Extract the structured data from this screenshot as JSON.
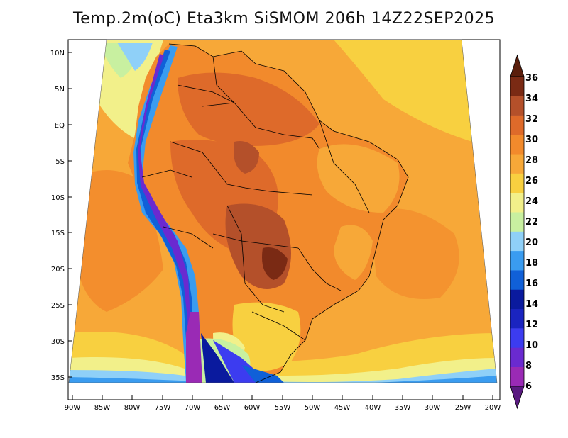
{
  "title": "Temp.2m(oC) Eta3km SiSMOM 206h 14Z22SEP2025",
  "lat_labels": [
    "10N",
    "5N",
    "EQ",
    "5S",
    "10S",
    "15S",
    "20S",
    "25S",
    "30S",
    "35S"
  ],
  "lon_labels": [
    "90W",
    "85W",
    "80W",
    "75W",
    "70W",
    "65W",
    "60W",
    "55W",
    "50W",
    "45W",
    "40W",
    "35W",
    "30W",
    "25W",
    "20W"
  ],
  "colorbar": {
    "labels": [
      "6",
      "8",
      "10",
      "12",
      "14",
      "16",
      "18",
      "20",
      "22",
      "24",
      "26",
      "28",
      "30",
      "32",
      "34",
      "36"
    ],
    "colors": [
      "#9a2ab5",
      "#6a2ad0",
      "#3c3cf0",
      "#1a24c0",
      "#0a1a9e",
      "#1060d8",
      "#3a9cf0",
      "#8fd0f8",
      "#c8f0a0",
      "#f2f08a",
      "#f8d040",
      "#f7a838",
      "#f28a2c",
      "#de6a2a",
      "#b4502a",
      "#7a2a14"
    ]
  },
  "chart_data": {
    "type": "heatmap",
    "variable": "Temp.2m(oC)",
    "model": "Eta3km SiSMOM",
    "forecast_hour": "206h",
    "valid_time": "14Z22SEP2025",
    "lon_range": [
      -90,
      -20
    ],
    "lat_range": [
      -38,
      12
    ],
    "color_scale_values": [
      6,
      8,
      10,
      12,
      14,
      16,
      18,
      20,
      22,
      24,
      26,
      28,
      30,
      32,
      34,
      36
    ]
  }
}
